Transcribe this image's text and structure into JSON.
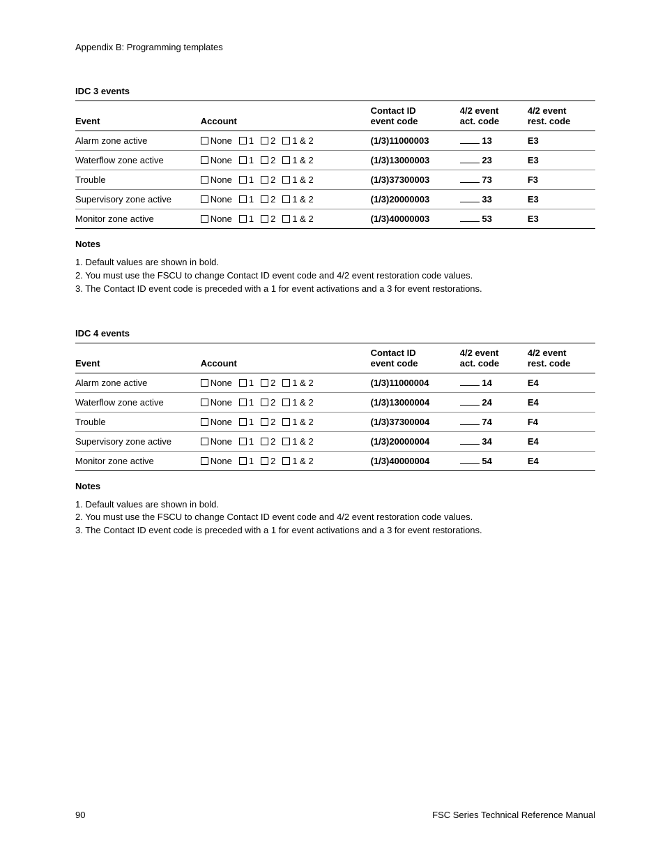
{
  "header": "Appendix B: Programming templates",
  "account_options": [
    "None",
    "1",
    "2",
    "1 & 2"
  ],
  "columns": {
    "event": "Event",
    "account": "Account",
    "contact_id": "Contact ID event code",
    "act_code": "4/2 event act. code",
    "rest_code": "4/2 event rest. code"
  },
  "sections": [
    {
      "title": "IDC 3 events",
      "rows": [
        {
          "event": "Alarm zone active",
          "cid": "(1/3)11000003",
          "act": "13",
          "rest": "E3"
        },
        {
          "event": "Waterflow zone active",
          "cid": "(1/3)13000003",
          "act": "23",
          "rest": "E3"
        },
        {
          "event": "Trouble",
          "cid": "(1/3)37300003",
          "act": "73",
          "rest": "F3"
        },
        {
          "event": "Supervisory zone active",
          "cid": "(1/3)20000003",
          "act": "33",
          "rest": "E3"
        },
        {
          "event": "Monitor zone active",
          "cid": "(1/3)40000003",
          "act": "53",
          "rest": "E3"
        }
      ]
    },
    {
      "title": "IDC 4 events",
      "rows": [
        {
          "event": "Alarm zone active",
          "cid": "(1/3)11000004",
          "act": "14",
          "rest": "E4"
        },
        {
          "event": "Waterflow zone active",
          "cid": "(1/3)13000004",
          "act": "24",
          "rest": "E4"
        },
        {
          "event": "Trouble",
          "cid": "(1/3)37300004",
          "act": "74",
          "rest": "F4"
        },
        {
          "event": "Supervisory zone active",
          "cid": "(1/3)20000004",
          "act": "34",
          "rest": "E4"
        },
        {
          "event": "Monitor zone active",
          "cid": "(1/3)40000004",
          "act": "54",
          "rest": "E4"
        }
      ]
    }
  ],
  "notes": {
    "title": "Notes",
    "items": [
      "1. Default values are shown in bold.",
      "2. You must use the FSCU to change Contact ID event code and 4/2 event restoration code values.",
      "3. The Contact ID event code is preceded with a 1 for event activations and a 3 for event restorations."
    ]
  },
  "footer": {
    "page": "90",
    "manual": "FSC Series Technical Reference Manual"
  }
}
